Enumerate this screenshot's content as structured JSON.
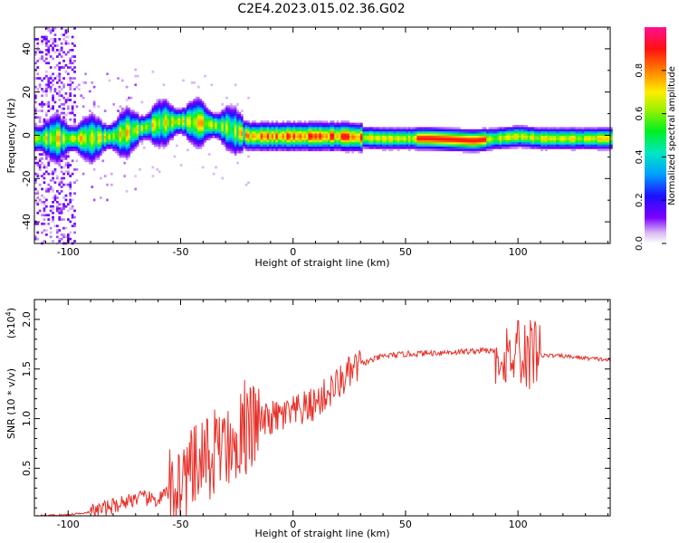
{
  "title": "C2E4.2023.015.02.36.G02",
  "colors": {
    "snr_line": "#e8302a",
    "frame": "#000000"
  },
  "chart_data": [
    {
      "type": "heatmap",
      "xlabel": "Height of straight line (km)",
      "ylabel": "Frequency (Hz)",
      "xlim": [
        -115,
        141
      ],
      "ylim": [
        -50,
        50
      ],
      "x_ticks": [
        -100,
        -50,
        0,
        50,
        100
      ],
      "y_ticks": [
        -40,
        -20,
        0,
        20,
        40
      ],
      "colorbar": {
        "label": "Normalized spectral amplitude",
        "range": [
          0,
          1
        ],
        "ticks": [
          "0.0",
          "0.2",
          "0.4",
          "0.6",
          "0.8"
        ]
      },
      "ridge": [
        [
          -115,
          -1
        ],
        [
          -100,
          -1
        ],
        [
          -90,
          -1
        ],
        [
          -80,
          0
        ],
        [
          -70,
          3
        ],
        [
          -60,
          6
        ],
        [
          -50,
          7
        ],
        [
          -40,
          6
        ],
        [
          -30,
          4
        ],
        [
          -25,
          2
        ],
        [
          -20,
          0
        ],
        [
          -10,
          0
        ],
        [
          0,
          0
        ],
        [
          20,
          0
        ],
        [
          40,
          -1
        ],
        [
          60,
          -1
        ],
        [
          80,
          -2
        ],
        [
          90,
          -1
        ],
        [
          100,
          0
        ],
        [
          110,
          -1
        ],
        [
          141,
          -1
        ]
      ]
    },
    {
      "type": "line",
      "xlabel": "Height of straight line (km)",
      "ylabel": "SNR (10 * v/v)",
      "y_scale_label": "(x10",
      "y_scale_exp": "4",
      "xlim": [
        -115,
        141
      ],
      "ylim": [
        0.02,
        2.2
      ],
      "x_ticks": [
        -100,
        -50,
        0,
        50,
        100
      ],
      "y_ticks": [
        "0.5",
        "1.0",
        "1.5",
        "2.0"
      ],
      "series": [
        {
          "trend": [
            [
              -115,
              0.02
            ],
            [
              -100,
              0.03
            ],
            [
              -90,
              0.06
            ],
            [
              -80,
              0.12
            ],
            [
              -70,
              0.2
            ],
            [
              -60,
              0.18
            ],
            [
              -50,
              0.35
            ],
            [
              -40,
              0.55
            ],
            [
              -30,
              0.75
            ],
            [
              -20,
              0.9
            ],
            [
              -10,
              1.0
            ],
            [
              0,
              1.05
            ],
            [
              10,
              1.15
            ],
            [
              20,
              1.35
            ],
            [
              30,
              1.55
            ],
            [
              40,
              1.63
            ],
            [
              50,
              1.65
            ],
            [
              60,
              1.66
            ],
            [
              70,
              1.67
            ],
            [
              80,
              1.68
            ],
            [
              85,
              1.69
            ],
            [
              90,
              1.67
            ],
            [
              100,
              1.65
            ],
            [
              110,
              1.64
            ],
            [
              120,
              1.63
            ],
            [
              130,
              1.61
            ],
            [
              141,
              1.59
            ]
          ]
        }
      ]
    }
  ]
}
